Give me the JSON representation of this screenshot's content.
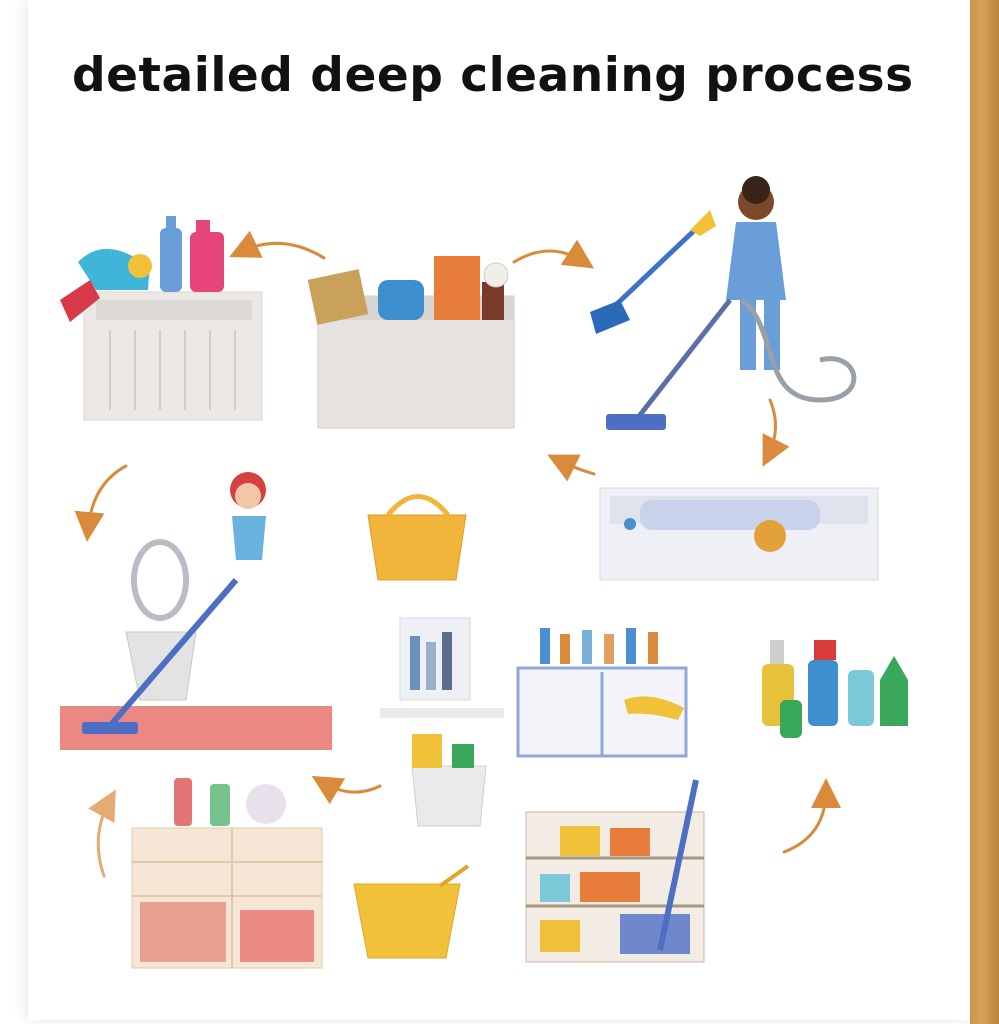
{
  "title": "detailed deep cleaning process",
  "colors": {
    "gold_edge": "#c9954a",
    "arrow": "#d98a3a",
    "bin": "#e6e3e0",
    "bucket": "#f2b53c",
    "mop_blue": "#4c6fc4",
    "rug": "#e8736e"
  },
  "steps": [
    {
      "icon": "sink-with-cleaning-bottles-icon"
    },
    {
      "icon": "bin-with-supplies-icon"
    },
    {
      "icon": "person-vacuuming-icon"
    },
    {
      "icon": "bathtub-scrubbing-icon"
    },
    {
      "icon": "yellow-bucket-icon"
    },
    {
      "icon": "woman-mopping-bathroom-icon"
    },
    {
      "icon": "bathroom-shelf-icon"
    },
    {
      "icon": "kitchen-counter-icon"
    },
    {
      "icon": "spray-bottles-icon"
    },
    {
      "icon": "supply-basket-icon"
    },
    {
      "icon": "storage-cabinet-icon"
    },
    {
      "icon": "mop-bucket-icon"
    },
    {
      "icon": "supply-rack-icon"
    }
  ]
}
